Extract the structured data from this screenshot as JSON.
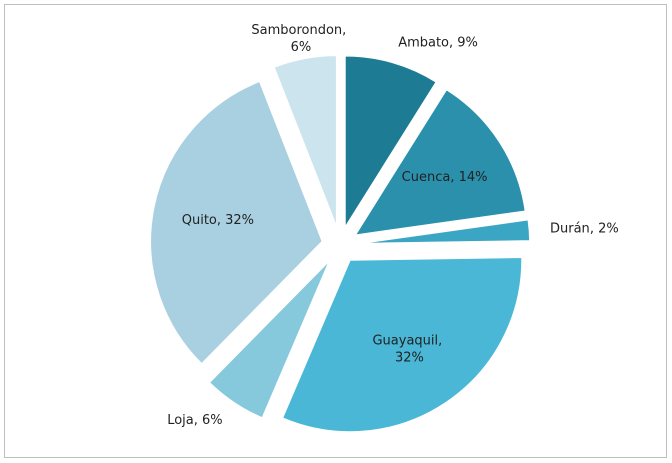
{
  "chart_data": {
    "type": "pie",
    "categories": [
      "Ambato",
      "Cuenca",
      "Durán",
      "Guayaquil",
      "Loja",
      "Quito",
      "Samborondon"
    ],
    "values": [
      9,
      14,
      2,
      32,
      6,
      32,
      6
    ],
    "value_labels": [
      "9%",
      "14%",
      "2%",
      "32%",
      "6%",
      "32%",
      "6%"
    ],
    "colors": [
      "#1d7b93",
      "#2a90ac",
      "#3ba6c3",
      "#49b7d5",
      "#86c9dd",
      "#a9d0e1",
      "#cbe4ee"
    ]
  }
}
